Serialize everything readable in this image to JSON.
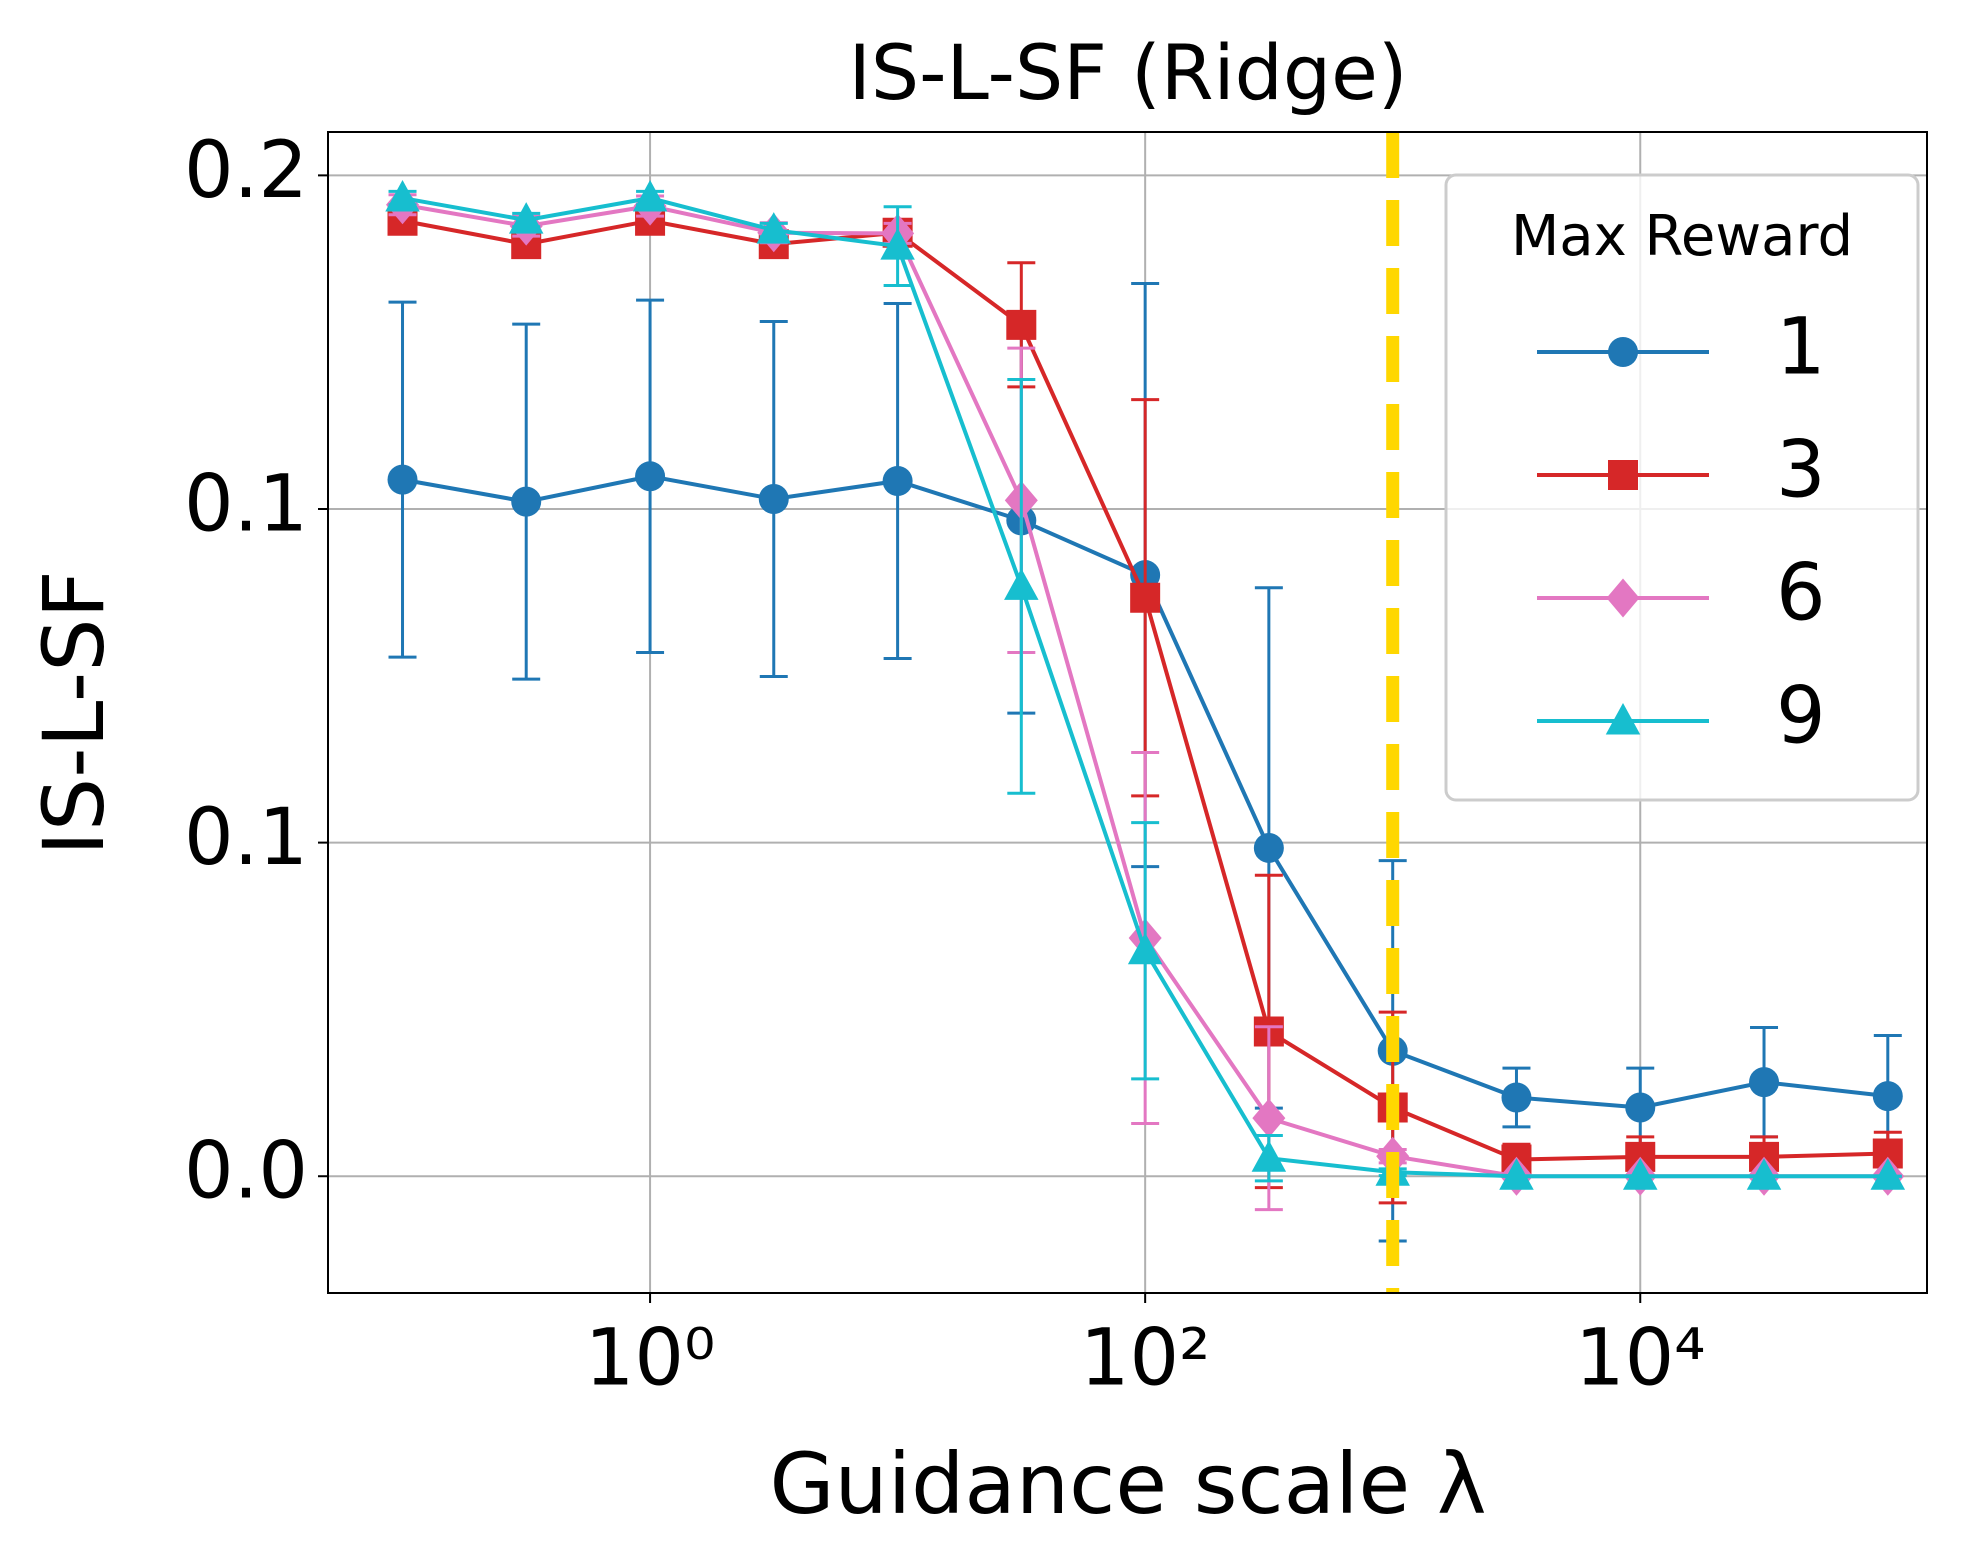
{
  "chart_data": {
    "type": "line",
    "title": "IS-L-SF (Ridge)",
    "x_label": "Guidance scale λ",
    "y_label": "IS-L-SF",
    "x": [
      0.1,
      0.316,
      1,
      3.16,
      10,
      31.6,
      100,
      316,
      1000,
      3162,
      10000,
      31623,
      100000
    ],
    "xscale": "log",
    "xlim": [
      0.05,
      144000
    ],
    "xticks": [
      {
        "value": 1,
        "label": "10⁰"
      },
      {
        "value": 100,
        "label": "10²"
      },
      {
        "value": 10000,
        "label": "10⁴"
      }
    ],
    "ylim": [
      -0.0175,
      0.1565
    ],
    "yticks": [
      {
        "value": 0,
        "label": "0.0"
      },
      {
        "value": 0.05,
        "label": "0.1"
      },
      {
        "value": 0.1,
        "label": "0.1"
      },
      {
        "value": 0.15,
        "label": "0.2"
      }
    ],
    "grid": true,
    "vline": {
      "x": 1000,
      "color": "#ffd700"
    },
    "legend": {
      "title": "Max Reward",
      "position": "upper right"
    },
    "series": [
      {
        "name": "1",
        "color": "#1f77b4",
        "marker": "circle",
        "values": [
          0.1044,
          0.1011,
          0.1049,
          0.1015,
          0.1042,
          0.0983,
          0.0901,
          0.0492,
          0.0188,
          0.0118,
          0.0103,
          0.0141,
          0.012
        ],
        "errors": [
          0.0266,
          0.0266,
          0.0264,
          0.0266,
          0.0266,
          0.0289,
          0.0437,
          0.039,
          0.0285,
          0.0044,
          0.0059,
          0.0082,
          0.0091
        ]
      },
      {
        "name": "3",
        "color": "#d62728",
        "marker": "square",
        "values": [
          0.1432,
          0.1397,
          0.1432,
          0.1397,
          0.1414,
          0.1276,
          0.0867,
          0.0217,
          0.0103,
          0.0025,
          0.0029,
          0.0029,
          0.0034
        ],
        "errors": [
          0.0019,
          0.0019,
          0.0019,
          0.0019,
          0.0019,
          0.0093,
          0.0297,
          0.0234,
          0.0143,
          0.0023,
          0.003,
          0.003,
          0.0032
        ]
      },
      {
        "name": "6",
        "color": "#e377c2",
        "marker": "diamond",
        "values": [
          0.1456,
          0.1424,
          0.1454,
          0.1414,
          0.1413,
          0.1013,
          0.0357,
          0.0087,
          0.003,
          0,
          0,
          0,
          0
        ],
        "errors": [
          0.0015,
          0.0015,
          0.0015,
          0.0015,
          0.0015,
          0.0228,
          0.0278,
          0.0137,
          0.001,
          0,
          0,
          0,
          0
        ]
      },
      {
        "name": "9",
        "color": "#17becf",
        "marker": "triangle",
        "values": [
          0.1466,
          0.1433,
          0.1466,
          0.1418,
          0.1394,
          0.0884,
          0.0338,
          0.0027,
          0.0006,
          0,
          0,
          0,
          0
        ],
        "errors": [
          0.001,
          0.001,
          0.001,
          0.001,
          0.0059,
          0.031,
          0.0192,
          0.0034,
          0.0005,
          0,
          0,
          0,
          0
        ]
      }
    ]
  }
}
